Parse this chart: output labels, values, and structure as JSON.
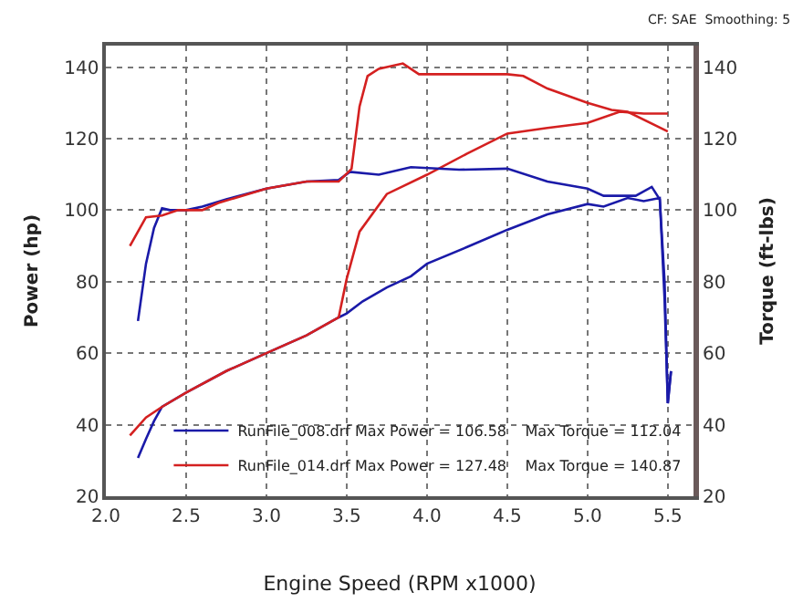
{
  "chart_data": {
    "type": "line",
    "xlabel": "Engine Speed (RPM x1000)",
    "ylabel": "Power (hp)",
    "y2label": "Torque (ft-lbs)",
    "annotations": [
      "CF: SAE  Smoothing: 5"
    ],
    "xlim": [
      2.0,
      5.66
    ],
    "ylim": [
      20,
      146
    ],
    "y2lim": [
      20,
      146
    ],
    "xticks": [
      {
        "value": 2,
        "label": "2.0"
      },
      2.5,
      {
        "value": 3,
        "label": "3.0"
      },
      3.5,
      {
        "value": 4,
        "label": "4.0"
      },
      4.5,
      {
        "value": 5,
        "label": "5.0"
      },
      5.5
    ],
    "yticks": [
      20,
      40,
      60,
      80,
      100,
      120,
      140
    ],
    "y2ticks": [
      20,
      40,
      60,
      80,
      100,
      120,
      140
    ],
    "grid": true,
    "legend": "bottom left",
    "marker": "none",
    "line_style": "solid",
    "series": [
      {
        "name": "RunFile_008.drf Max Power = 106.58    Max Torque = 112.04",
        "color": "#1a1aa8",
        "x": [
          2.2,
          2.25,
          2.3,
          2.35,
          2.5,
          2.75,
          3.0,
          3.25,
          3.45,
          3.5,
          3.6,
          3.75,
          3.9,
          4.0,
          4.25,
          4.5,
          4.75,
          5.0,
          5.1,
          5.25,
          5.35,
          5.45,
          5.48,
          5.5,
          5.52
        ],
        "values": [
          30.7,
          36,
          41,
          45,
          49,
          55,
          60,
          65,
          70,
          71.1,
          74.5,
          78.4,
          81.5,
          85,
          89.7,
          94.5,
          98.8,
          101.7,
          101,
          103.4,
          102.5,
          103.4,
          75,
          46,
          55
        ]
      },
      {
        "color": "#1a1aa8",
        "axis": "y2",
        "x": [
          2.2,
          2.25,
          2.3,
          2.35,
          2.4,
          2.5,
          2.6,
          2.75,
          3.0,
          3.25,
          3.45,
          3.52,
          3.7,
          3.9,
          4.2,
          4.5,
          4.75,
          5.0,
          5.1,
          5.3,
          5.4,
          5.45,
          5.48,
          5.5,
          5.52
        ],
        "values": [
          69,
          85,
          95,
          100.5,
          100,
          100,
          101,
          103,
          106,
          108,
          108.4,
          110.7,
          109.9,
          112,
          111.3,
          111.6,
          108,
          106,
          104,
          104,
          106.5,
          103,
          80,
          46,
          55
        ]
      },
      {
        "name": "RunFile_014.drf Max Power = 127.48    Max Torque = 140.87",
        "color": "#d42020",
        "x": [
          2.15,
          2.25,
          2.35,
          2.5,
          2.75,
          3.0,
          3.25,
          3.45,
          3.5,
          3.58,
          3.75,
          4.0,
          4.25,
          4.5,
          4.75,
          5.0,
          5.2,
          5.35,
          5.5
        ],
        "values": [
          37,
          42,
          45,
          49,
          55,
          60,
          65,
          70,
          80.8,
          94,
          104.5,
          109.9,
          115.8,
          121.4,
          123,
          124.4,
          127.5,
          127,
          127
        ]
      },
      {
        "color": "#d42020",
        "axis": "y2",
        "x": [
          2.15,
          2.25,
          2.35,
          2.45,
          2.6,
          2.7,
          3.0,
          3.25,
          3.45,
          3.53,
          3.58,
          3.63,
          3.7,
          3.85,
          3.95,
          4.25,
          4.5,
          4.6,
          4.75,
          5.0,
          5.15,
          5.25,
          5.5
        ],
        "values": [
          90,
          98,
          98.5,
          100,
          100,
          102,
          106,
          108,
          108,
          111.5,
          129,
          137.5,
          139.5,
          141,
          138,
          138,
          138,
          137.5,
          134,
          130,
          128,
          127.5,
          122
        ]
      }
    ]
  }
}
